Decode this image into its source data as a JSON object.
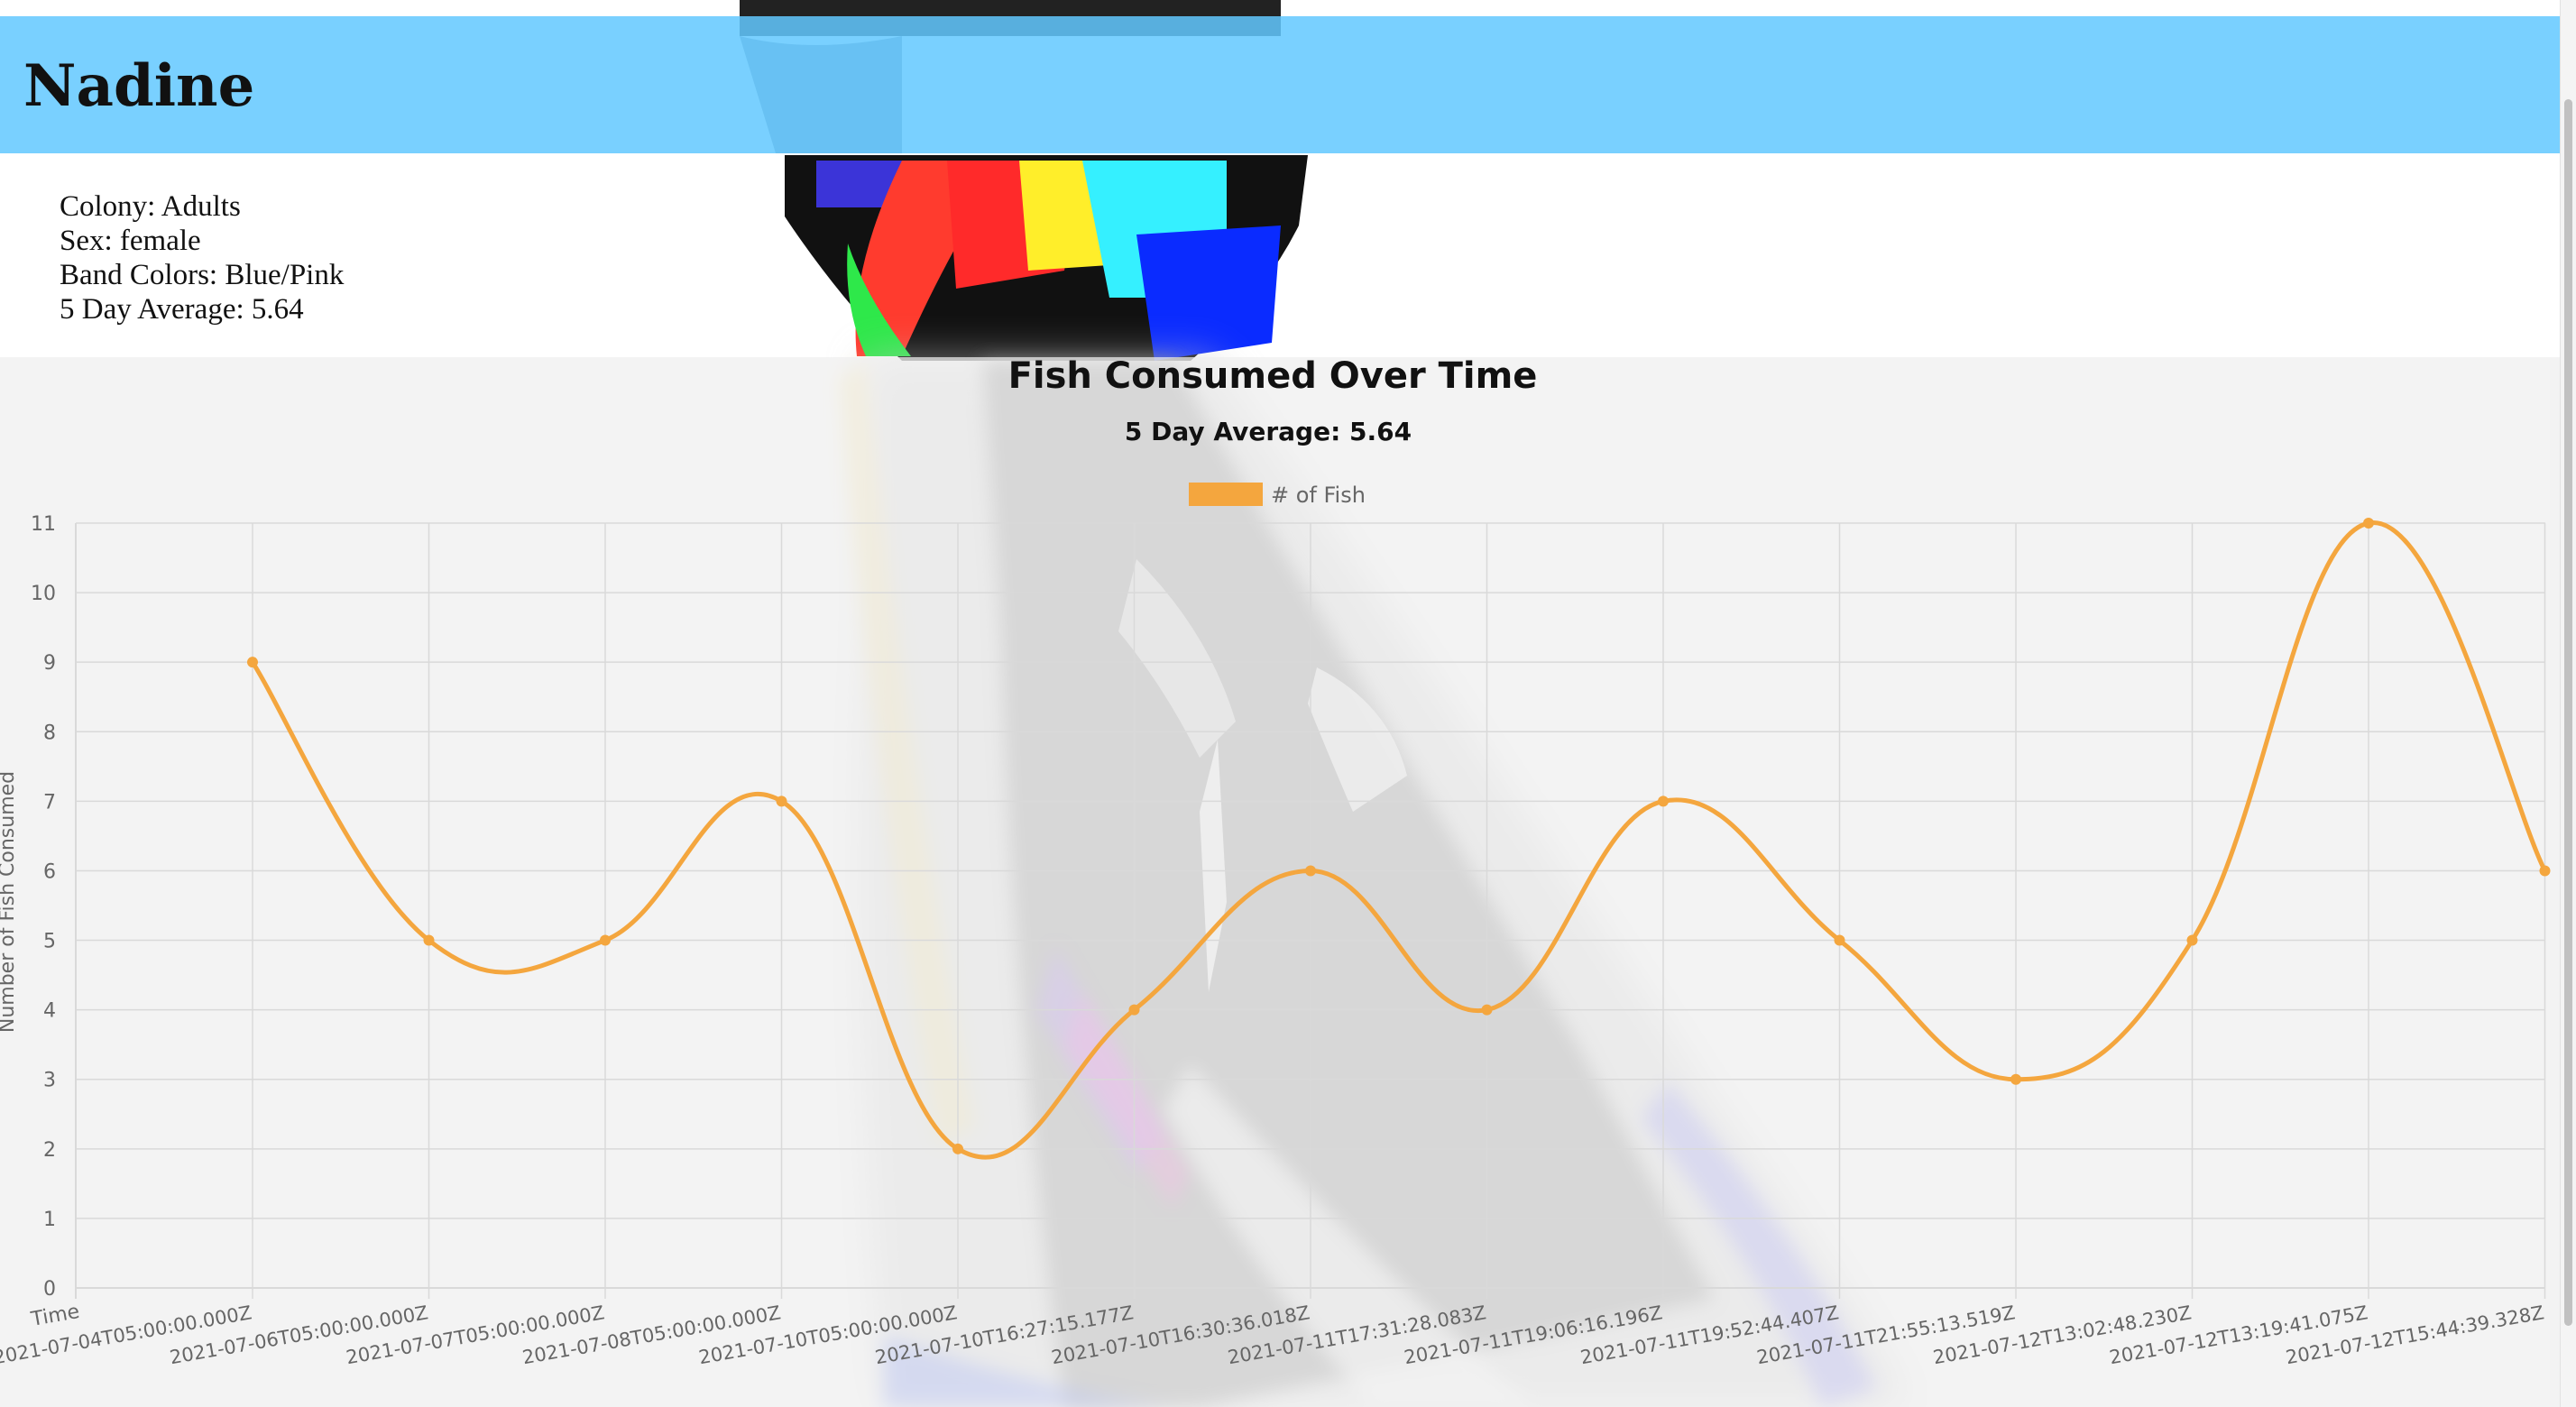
{
  "penguin": {
    "name": "Nadine",
    "colony_label": "Colony: Adults",
    "sex_label": "Sex: female",
    "band_colors_label": "Band Colors: Blue/Pink",
    "average_label": "5 Day Average: 5.64"
  },
  "colors": {
    "header": "#62c8ff",
    "series": "#f4a63e",
    "grid": "#d9d9d9",
    "axis_text": "#666666"
  },
  "chart_data": {
    "type": "line",
    "title": "Fish Consumed Over Time",
    "subtitle": "5 Day Average: 5.64",
    "xlabel": "Time",
    "ylabel": "Number of Fish Consumed",
    "ylim": [
      0,
      11
    ],
    "yticks": [
      0,
      1,
      2,
      3,
      4,
      5,
      6,
      7,
      8,
      9,
      10,
      11
    ],
    "grid": true,
    "legend": "top-center",
    "x": [
      "2021-07-04T05:00:00.000Z",
      "2021-07-06T05:00:00.000Z",
      "2021-07-07T05:00:00.000Z",
      "2021-07-08T05:00:00.000Z",
      "2021-07-10T05:00:00.000Z",
      "2021-07-10T16:27:15.177Z",
      "2021-07-10T16:30:36.018Z",
      "2021-07-11T17:31:28.083Z",
      "2021-07-11T19:06:16.196Z",
      "2021-07-11T19:52:44.407Z",
      "2021-07-11T21:55:13.519Z",
      "2021-07-12T13:02:48.230Z",
      "2021-07-12T13:19:41.075Z",
      "2021-07-12T15:44:39.328Z"
    ],
    "series": [
      {
        "name": "# of Fish",
        "values": [
          9,
          5,
          5,
          7,
          2,
          4,
          6,
          4,
          7,
          5,
          3,
          5,
          11,
          6
        ]
      }
    ]
  }
}
